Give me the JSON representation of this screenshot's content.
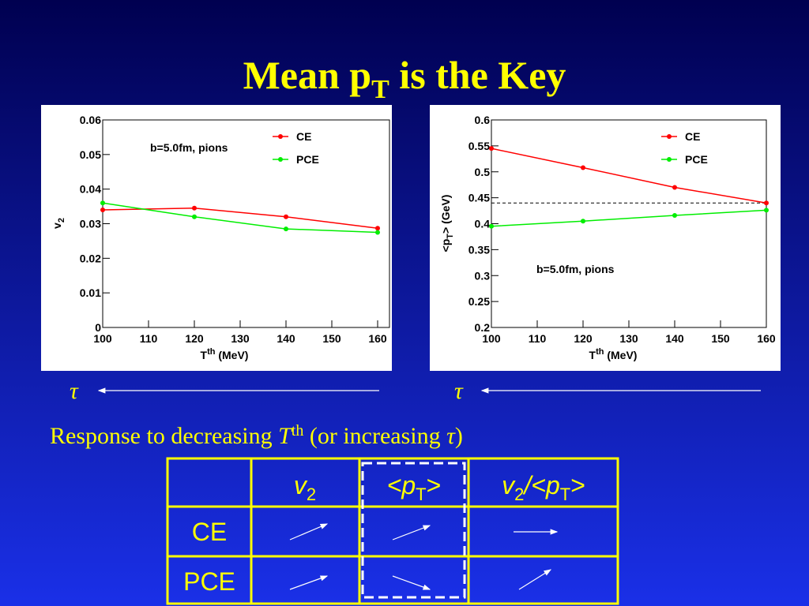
{
  "title": {
    "main": "Mean p",
    "sub": "T",
    "rest": " is the Key"
  },
  "chart_data": [
    {
      "type": "line",
      "annotation": "b=5.0fm, pions",
      "xlabel": {
        "main": "T",
        "sup": "th",
        "rest": " (MeV)"
      },
      "ylabel": {
        "main": "v",
        "sub": "2"
      },
      "x": [
        100,
        120,
        140,
        160
      ],
      "series": [
        {
          "name": "CE",
          "color": "#ff0000",
          "values": [
            0.034,
            0.0345,
            0.032,
            0.0287
          ]
        },
        {
          "name": "PCE",
          "color": "#00ee00",
          "values": [
            0.036,
            0.032,
            0.0285,
            0.0275
          ]
        }
      ],
      "xlim": [
        100,
        160
      ],
      "xticks": [
        100,
        110,
        120,
        130,
        140,
        150,
        160
      ],
      "ylim": [
        0,
        0.06
      ],
      "yticks": [
        0,
        0.01,
        0.02,
        0.03,
        0.04,
        0.05,
        0.06
      ]
    },
    {
      "type": "line",
      "annotation": "b=5.0fm, pions",
      "xlabel": {
        "main": "T",
        "sup": "th",
        "rest": " (MeV)"
      },
      "ylabel": {
        "main": "<p",
        "sub": "T",
        "rest": "> (GeV)"
      },
      "x": [
        100,
        120,
        140,
        160
      ],
      "series": [
        {
          "name": "CE",
          "color": "#ff0000",
          "values": [
            0.545,
            0.508,
            0.47,
            0.44
          ]
        },
        {
          "name": "PCE",
          "color": "#00ee00",
          "values": [
            0.395,
            0.405,
            0.416,
            0.426
          ]
        }
      ],
      "reference_line": 0.44,
      "xlim": [
        100,
        160
      ],
      "xticks": [
        100,
        110,
        120,
        130,
        140,
        150,
        160
      ],
      "ylim": [
        0.2,
        0.6
      ],
      "yticks": [
        0.2,
        0.25,
        0.3,
        0.35,
        0.4,
        0.45,
        0.5,
        0.55,
        0.6
      ]
    }
  ],
  "arrow_labels": [
    "τ",
    "τ"
  ],
  "caption": {
    "pre": "Response to decreasing ",
    "var": "T",
    "sup": "th",
    "post": " (or increasing ",
    "tau": "τ",
    "end": ")"
  },
  "table": {
    "header": [
      {
        "main": "v",
        "sub": "2"
      },
      {
        "main": "<p",
        "sub": "T",
        "rest": ">"
      },
      {
        "main": "v",
        "sub": "2",
        "mid": "/<p",
        "sub2": "T",
        "rest": ">"
      }
    ],
    "rows": [
      "CE",
      "PCE"
    ]
  }
}
